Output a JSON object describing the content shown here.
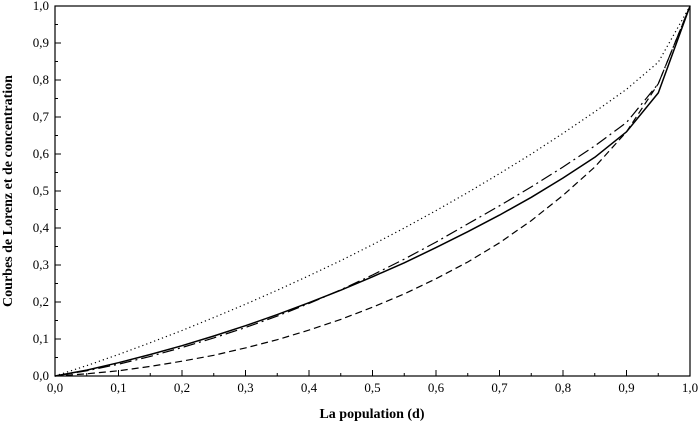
{
  "chart_data": {
    "type": "line",
    "title": "",
    "xlabel": "La population (d)",
    "ylabel": "Courbes de Lorenz et de concentration",
    "xlim": [
      0,
      1
    ],
    "ylim": [
      0,
      1
    ],
    "x_ticks": [
      "0,0",
      "0,1",
      "0,2",
      "0,3",
      "0,4",
      "0,5",
      "0,6",
      "0,7",
      "0,8",
      "0,9",
      "1,0"
    ],
    "y_ticks": [
      "0,0",
      "0,1",
      "0,2",
      "0,3",
      "0,4",
      "0,5",
      "0,6",
      "0,7",
      "0,8",
      "0,9",
      "1,0"
    ],
    "grid": false,
    "legend": "none",
    "x": [
      0,
      0.05,
      0.1,
      0.15,
      0.2,
      0.25,
      0.3,
      0.35,
      0.4,
      0.45,
      0.5,
      0.55,
      0.6,
      0.65,
      0.7,
      0.75,
      0.8,
      0.85,
      0.9,
      0.95,
      1.0
    ],
    "series": [
      {
        "line_style": "dotted",
        "color": "#000000",
        "values": [
          0,
          0.028,
          0.058,
          0.09,
          0.123,
          0.158,
          0.194,
          0.232,
          0.271,
          0.312,
          0.355,
          0.4,
          0.447,
          0.496,
          0.547,
          0.6,
          0.656,
          0.714,
          0.775,
          0.848,
          1.0
        ]
      },
      {
        "line_style": "solid",
        "color": "#000000",
        "values": [
          0,
          0.016,
          0.036,
          0.058,
          0.082,
          0.108,
          0.136,
          0.166,
          0.198,
          0.232,
          0.268,
          0.306,
          0.347,
          0.39,
          0.435,
          0.483,
          0.535,
          0.591,
          0.66,
          0.765,
          1.0
        ]
      },
      {
        "line_style": "dashdot",
        "color": "#000000",
        "values": [
          0,
          0.014,
          0.032,
          0.053,
          0.077,
          0.103,
          0.131,
          0.162,
          0.196,
          0.233,
          0.273,
          0.316,
          0.362,
          0.411,
          0.46,
          0.511,
          0.565,
          0.622,
          0.685,
          0.79,
          1.0
        ]
      },
      {
        "line_style": "dashed",
        "color": "#000000",
        "values": [
          0,
          0.006,
          0.014,
          0.026,
          0.04,
          0.056,
          0.076,
          0.098,
          0.124,
          0.153,
          0.186,
          0.222,
          0.263,
          0.308,
          0.36,
          0.42,
          0.488,
          0.565,
          0.66,
          0.79,
          1.0
        ]
      }
    ]
  }
}
